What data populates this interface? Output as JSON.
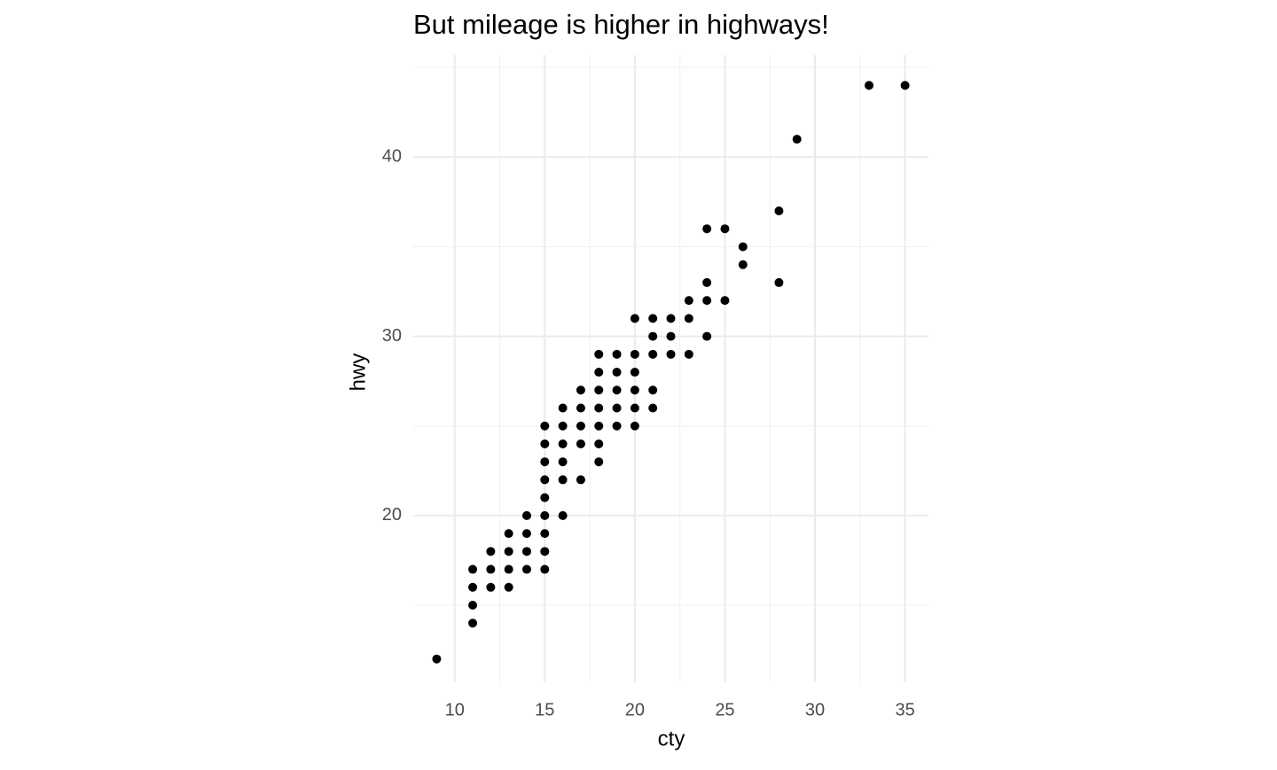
{
  "chart_data": {
    "type": "scatter",
    "title": "But mileage is higher in highways!",
    "x_label": "cty",
    "y_label": "hwy",
    "x": [
      9,
      11,
      11,
      11,
      11,
      12,
      12,
      12,
      13,
      13,
      13,
      13,
      14,
      14,
      14,
      14,
      15,
      15,
      15,
      15,
      15,
      15,
      15,
      15,
      15,
      16,
      16,
      16,
      16,
      16,
      16,
      17,
      17,
      17,
      17,
      17,
      18,
      18,
      18,
      18,
      18,
      18,
      18,
      19,
      19,
      19,
      19,
      19,
      20,
      20,
      20,
      20,
      20,
      20,
      21,
      21,
      21,
      21,
      21,
      22,
      22,
      22,
      23,
      23,
      23,
      24,
      24,
      24,
      24,
      25,
      25,
      26,
      26,
      28,
      28,
      29,
      33,
      35
    ],
    "y": [
      12,
      14,
      15,
      16,
      17,
      16,
      17,
      18,
      16,
      17,
      18,
      19,
      17,
      18,
      19,
      20,
      17,
      18,
      19,
      20,
      21,
      22,
      23,
      24,
      25,
      20,
      22,
      23,
      24,
      25,
      26,
      22,
      24,
      25,
      26,
      27,
      23,
      24,
      25,
      26,
      27,
      28,
      29,
      25,
      26,
      27,
      28,
      29,
      25,
      26,
      27,
      28,
      29,
      31,
      26,
      27,
      29,
      30,
      31,
      29,
      30,
      31,
      29,
      31,
      32,
      30,
      32,
      33,
      36,
      32,
      36,
      34,
      35,
      33,
      37,
      41,
      44,
      44
    ],
    "color": "#000000",
    "xlim": [
      7.7,
      36.3
    ],
    "ylim": [
      10.7,
      45.7
    ],
    "xticks": [
      10,
      15,
      20,
      25,
      30,
      35
    ],
    "yticks": [
      20,
      30,
      40
    ],
    "xminor": [
      12.5,
      17.5,
      22.5,
      27.5,
      32.5
    ],
    "yminor": [
      15,
      25,
      35,
      45
    ],
    "grid": true
  }
}
